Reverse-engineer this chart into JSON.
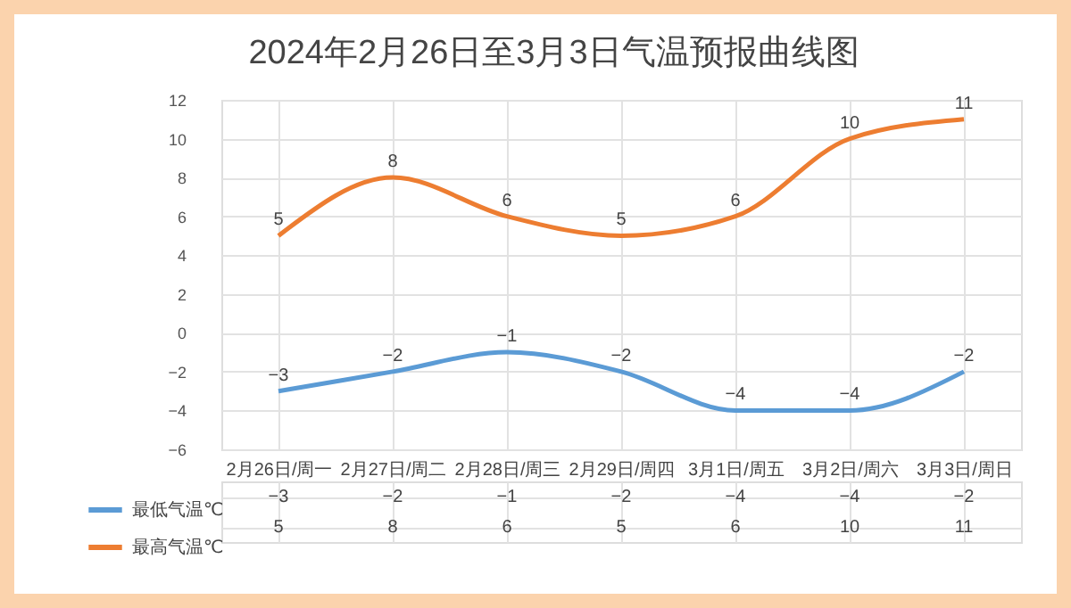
{
  "chart_data": {
    "type": "line",
    "title": "2024年2月26日至3月3日气温预报曲线图",
    "categories": [
      "2月26日/周一",
      "2月27日/周二",
      "2月28日/周三",
      "2月29日/周四",
      "3月1日/周五",
      "3月2日/周六",
      "3月3日/周日"
    ],
    "series": [
      {
        "name": "最低气温℃",
        "color": "#5b9bd5",
        "values": [
          -3,
          -2,
          -1,
          -2,
          -4,
          -4,
          -2
        ],
        "value_labels": [
          "−3",
          "−2",
          "−1",
          "−2",
          "−4",
          "−4",
          "−2"
        ]
      },
      {
        "name": "最高气温℃",
        "color": "#ed7d31",
        "values": [
          5,
          8,
          6,
          5,
          6,
          10,
          11
        ],
        "value_labels": [
          "5",
          "8",
          "6",
          "5",
          "6",
          "10",
          "11"
        ]
      }
    ],
    "ylim": [
      -6,
      12
    ],
    "yticks": [
      -6,
      -4,
      -2,
      0,
      2,
      4,
      6,
      8,
      10,
      12
    ],
    "grid": true,
    "data_labels": true,
    "legend": "bottom"
  }
}
